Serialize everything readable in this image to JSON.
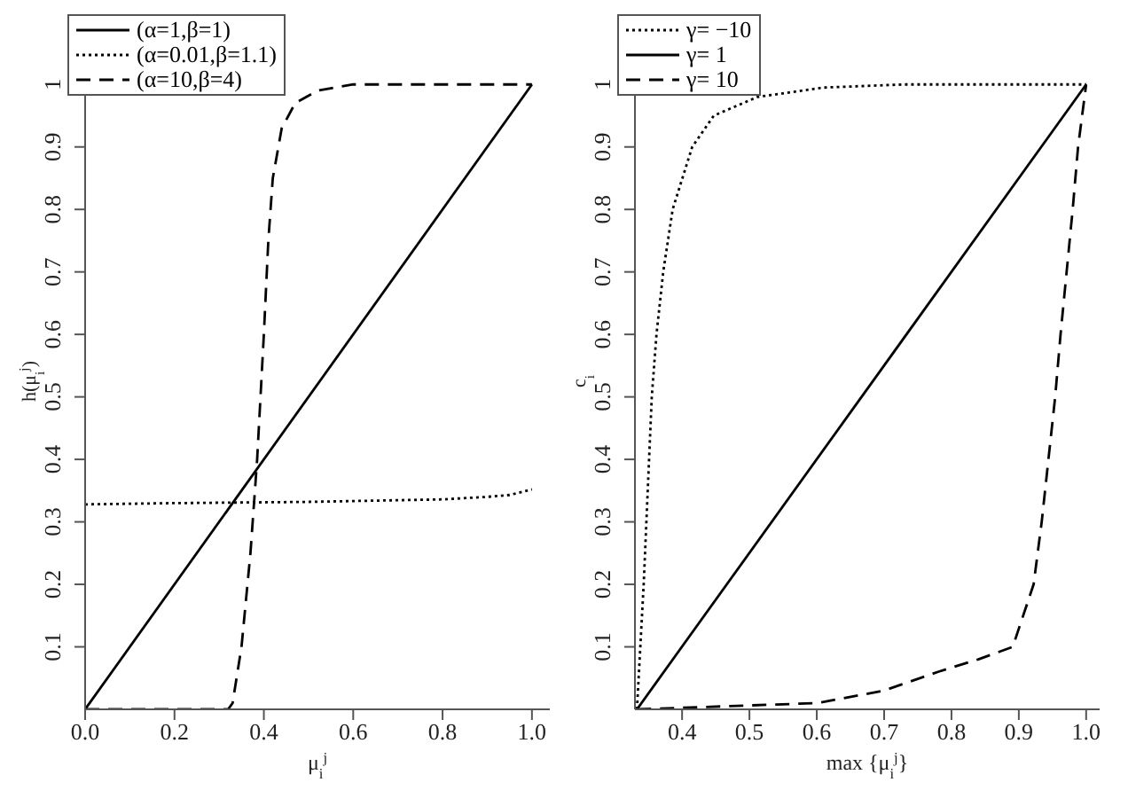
{
  "chart_data": [
    {
      "type": "line",
      "xlabel": "μ$_{i}$$^{j}$",
      "ylabel": "h(μ$_{i}$$^{j}$)",
      "xlim": [
        0,
        1.04
      ],
      "ylim": [
        0,
        1.05
      ],
      "xticks": [
        {
          "value": 0,
          "label": "0.0"
        },
        {
          "value": 0.2,
          "label": "0.2"
        },
        {
          "value": 0.4,
          "label": "0.4"
        },
        {
          "value": 0.6,
          "label": "0.6"
        },
        {
          "value": 0.8,
          "label": "0.8"
        },
        {
          "value": 1,
          "label": "1.0"
        }
      ],
      "yticks": [
        0.1,
        0.2,
        0.3,
        0.4,
        0.5,
        0.6,
        0.7,
        0.8,
        0.9,
        1
      ],
      "legend": "top left",
      "marker": "none",
      "series": [
        {
          "name": "(α=1,β=1)",
          "color": "#000000",
          "line_style": "solid",
          "x": [
            0,
            1
          ],
          "values": [
            0,
            1
          ]
        },
        {
          "name": "(α=0.01,β=1.1)",
          "color": "#000000",
          "line_style": "dotted",
          "x": [
            0,
            0.2,
            0.5,
            0.8,
            0.9,
            0.95,
            1
          ],
          "values": [
            0.328,
            0.33,
            0.332,
            0.336,
            0.34,
            0.343,
            0.352
          ]
        },
        {
          "name": "(α=10,β=4)",
          "color": "#000000",
          "line_style": "dashed",
          "x": [
            0,
            0.32,
            0.33,
            0.35,
            0.37,
            0.385,
            0.4,
            0.41,
            0.42,
            0.44,
            0.47,
            0.52,
            0.6,
            1
          ],
          "values": [
            0,
            0,
            0.01,
            0.1,
            0.25,
            0.4,
            0.6,
            0.75,
            0.85,
            0.93,
            0.97,
            0.99,
            1,
            1
          ]
        }
      ]
    },
    {
      "type": "line",
      "xlabel": "max {μ$_{i}$$^{j}$}",
      "ylabel": "c$_{i}$",
      "xlim": [
        0.33,
        1.02
      ],
      "ylim": [
        0,
        1.05
      ],
      "xticks": [
        0.4,
        0.5,
        0.6,
        0.7,
        0.8,
        0.9,
        {
          "value": 1,
          "label": "1.0"
        }
      ],
      "yticks": [
        0.1,
        0.2,
        0.3,
        0.4,
        0.5,
        0.6,
        0.7,
        0.8,
        0.9,
        1
      ],
      "legend": "top left",
      "marker": "none",
      "series": [
        {
          "name": "γ= −10",
          "color": "#000000",
          "line_style": "dotted",
          "x": [
            0.333,
            0.343,
            0.355,
            0.362,
            0.372,
            0.386,
            0.415,
            0.447,
            0.512,
            0.61,
            0.73,
            1
          ],
          "values": [
            0,
            0.2,
            0.5,
            0.6,
            0.7,
            0.8,
            0.9,
            0.95,
            0.98,
            0.995,
            1,
            1
          ]
        },
        {
          "name": "γ= 1",
          "color": "#000000",
          "line_style": "solid",
          "x": [
            0.333,
            1
          ],
          "values": [
            0,
            1
          ]
        },
        {
          "name": "γ= 10",
          "color": "#000000",
          "line_style": "dashed",
          "x": [
            0.333,
            0.6,
            0.7,
            0.78,
            0.84,
            0.891,
            0.922,
            0.934,
            0.954,
            0.962,
            0.971,
            0.98,
            0.988,
            1
          ],
          "values": [
            0,
            0.01,
            0.03,
            0.06,
            0.08,
            0.1,
            0.2,
            0.3,
            0.5,
            0.6,
            0.7,
            0.8,
            0.9,
            1
          ]
        }
      ]
    }
  ]
}
